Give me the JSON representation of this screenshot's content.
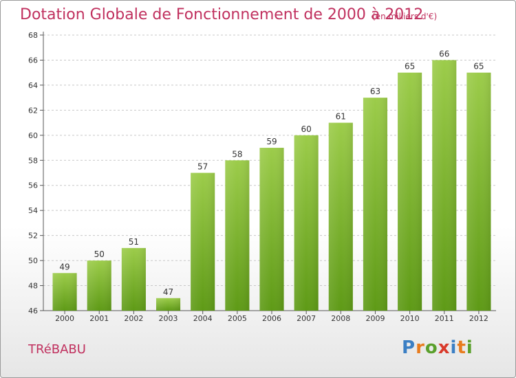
{
  "header": {
    "title": "Dotation Globale de Fonctionnement de 2000 à 2012",
    "subtitle": "(en milliers d'€)"
  },
  "footer": {
    "commune": "TRéBABU",
    "logo_text": "Proxiti",
    "logo_letters": [
      "P",
      "r",
      "o",
      "x",
      "i",
      "t",
      "i"
    ],
    "logo_colors": [
      "#3b7fc4",
      "#e87c1e",
      "#5aa02c",
      "#d93a2b",
      "#3b7fc4",
      "#e87c1e",
      "#5aa02c"
    ]
  },
  "chart_data": {
    "type": "bar",
    "categories": [
      "2000",
      "2001",
      "2002",
      "2003",
      "2004",
      "2005",
      "2006",
      "2007",
      "2008",
      "2009",
      "2010",
      "2011",
      "2012"
    ],
    "values": [
      49,
      50,
      51,
      47,
      57,
      58,
      59,
      60,
      61,
      63,
      65,
      66,
      65
    ],
    "title": "Dotation Globale de Fonctionnement de 2000 à 2012",
    "subtitle": "(en milliers d'€)",
    "xlabel": "",
    "ylabel": "",
    "ylim": [
      46,
      68
    ],
    "yticks": [
      46,
      48,
      50,
      52,
      54,
      56,
      58,
      60,
      62,
      64,
      66,
      68
    ],
    "grid": true,
    "bar_color_top": "#9ccc4a",
    "bar_color_bottom": "#5e9a16"
  }
}
